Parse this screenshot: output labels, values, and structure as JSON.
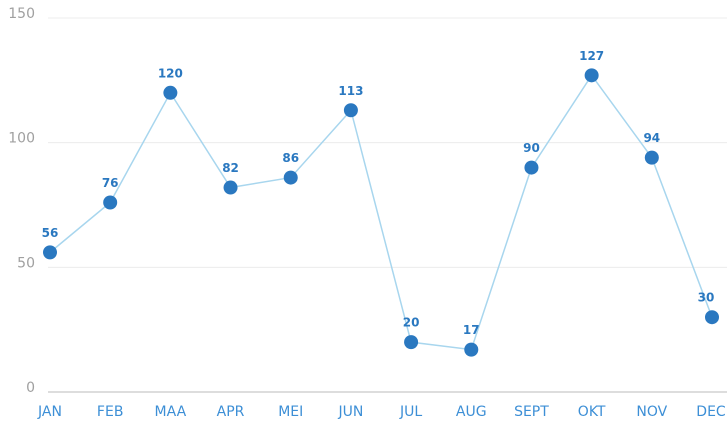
{
  "chart_data": {
    "type": "line",
    "categories": [
      "JAN",
      "FEB",
      "MAA",
      "APR",
      "MEI",
      "JUN",
      "JUL",
      "AUG",
      "SEPT",
      "OKT",
      "NOV",
      "DEC"
    ],
    "values": [
      56,
      76,
      120,
      82,
      86,
      113,
      20,
      17,
      90,
      127,
      94,
      30
    ],
    "line_color": "#a8d6ee",
    "marker_color": "#2a78c0",
    "ylim": [
      0,
      150
    ],
    "yticks": [
      0,
      50,
      100,
      150
    ],
    "grid": true
  }
}
